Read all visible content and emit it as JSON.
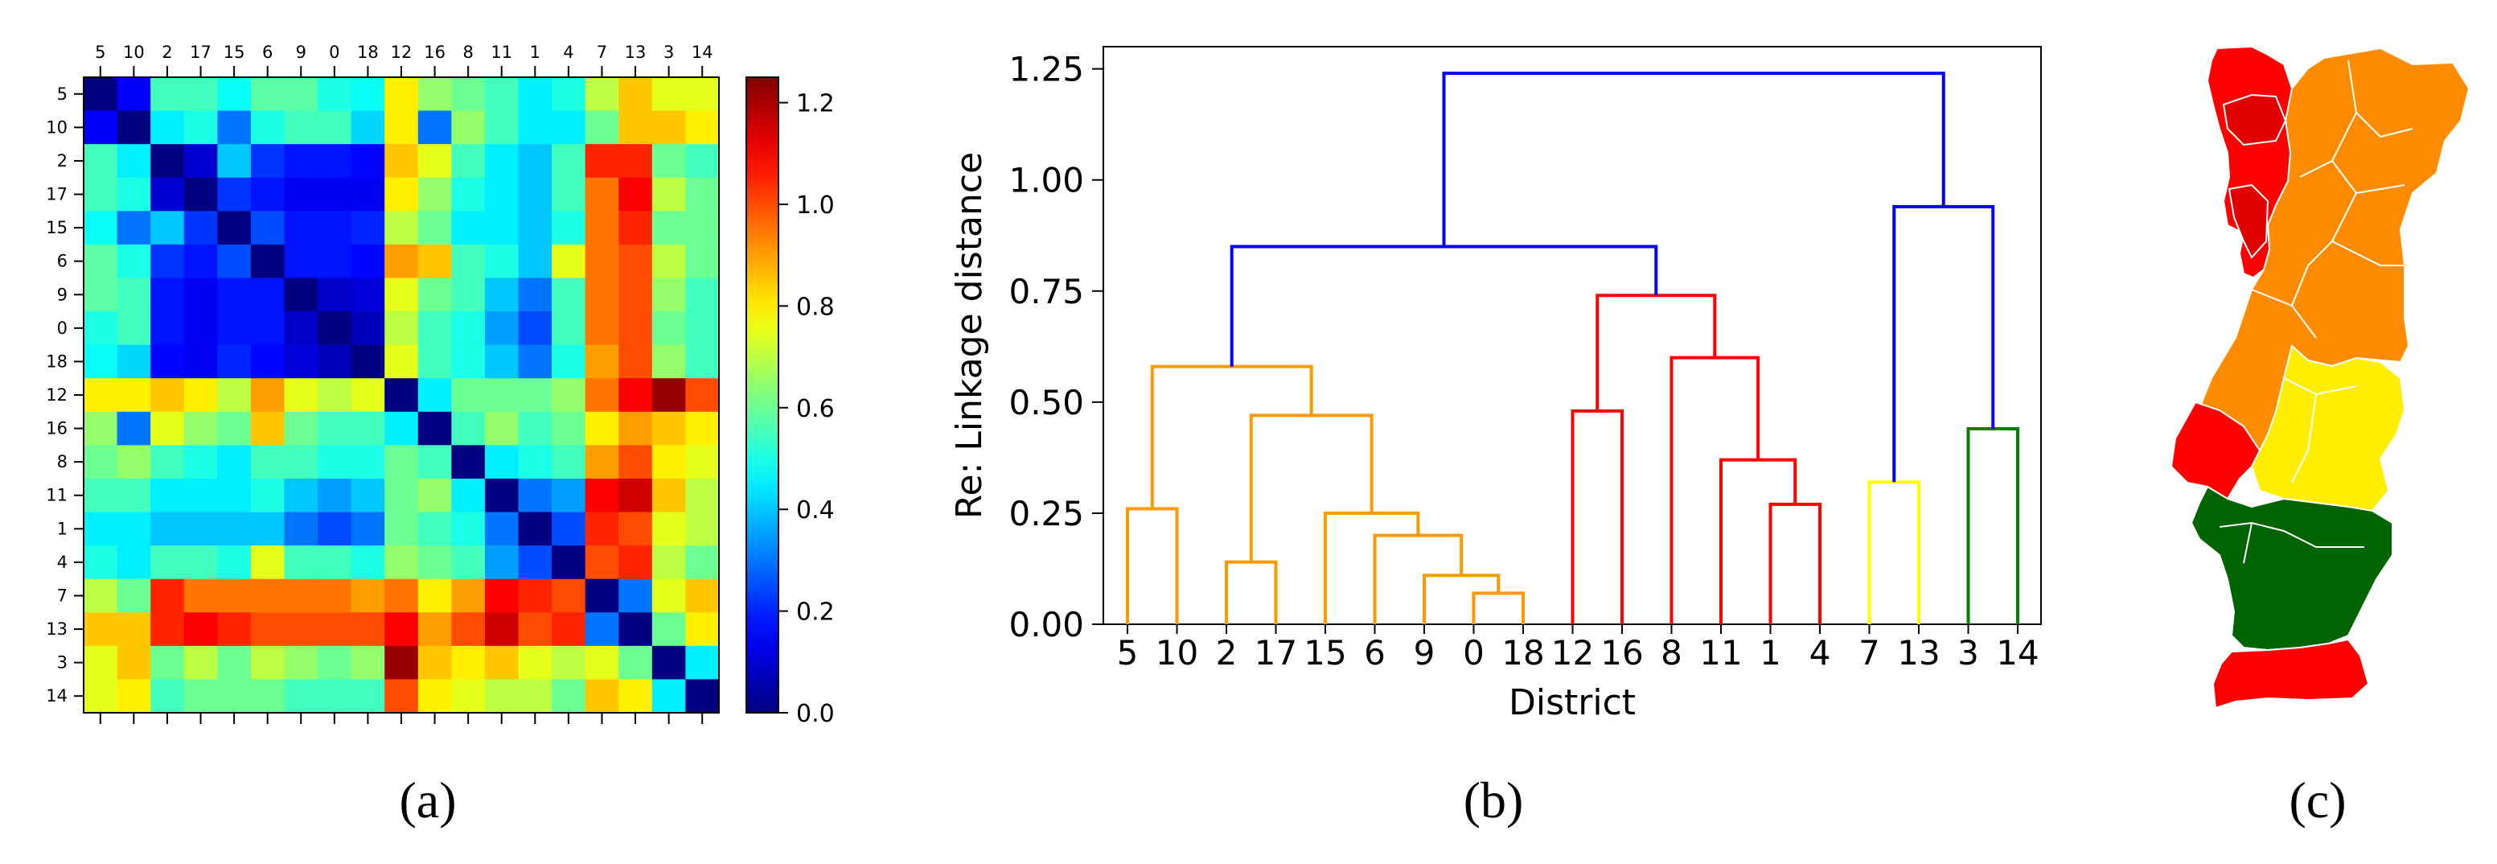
{
  "chart_data": [
    {
      "type": "heatmap",
      "panel": "(a)",
      "row_labels": [
        "5",
        "10",
        "2",
        "17",
        "15",
        "6",
        "9",
        "0",
        "18",
        "12",
        "16",
        "8",
        "11",
        "1",
        "4",
        "7",
        "13",
        "3",
        "14"
      ],
      "col_labels": [
        "5",
        "10",
        "2",
        "17",
        "15",
        "6",
        "9",
        "0",
        "18",
        "12",
        "16",
        "8",
        "11",
        "1",
        "4",
        "7",
        "13",
        "3",
        "14"
      ],
      "values": [
        [
          0.0,
          0.15,
          0.55,
          0.55,
          0.48,
          0.58,
          0.58,
          0.5,
          0.48,
          0.8,
          0.65,
          0.6,
          0.55,
          0.45,
          0.5,
          0.7,
          0.85,
          0.75,
          0.75
        ],
        [
          0.15,
          0.0,
          0.45,
          0.5,
          0.3,
          0.5,
          0.55,
          0.55,
          0.42,
          0.8,
          0.3,
          0.65,
          0.55,
          0.45,
          0.45,
          0.6,
          0.85,
          0.85,
          0.8
        ],
        [
          0.55,
          0.45,
          0.0,
          0.1,
          0.4,
          0.22,
          0.18,
          0.18,
          0.16,
          0.85,
          0.75,
          0.55,
          0.45,
          0.4,
          0.55,
          1.05,
          1.05,
          0.6,
          0.55
        ],
        [
          0.55,
          0.5,
          0.1,
          0.0,
          0.22,
          0.18,
          0.14,
          0.14,
          0.14,
          0.8,
          0.65,
          0.5,
          0.45,
          0.4,
          0.55,
          0.95,
          1.1,
          0.7,
          0.6
        ],
        [
          0.48,
          0.3,
          0.4,
          0.22,
          0.0,
          0.25,
          0.18,
          0.18,
          0.2,
          0.7,
          0.6,
          0.45,
          0.45,
          0.4,
          0.5,
          0.95,
          1.05,
          0.6,
          0.6
        ],
        [
          0.58,
          0.5,
          0.22,
          0.18,
          0.25,
          0.0,
          0.18,
          0.18,
          0.16,
          0.9,
          0.85,
          0.55,
          0.5,
          0.4,
          0.75,
          0.95,
          1.0,
          0.7,
          0.6
        ],
        [
          0.58,
          0.55,
          0.18,
          0.14,
          0.18,
          0.18,
          0.0,
          0.09,
          0.11,
          0.75,
          0.6,
          0.55,
          0.4,
          0.3,
          0.55,
          0.95,
          1.0,
          0.65,
          0.55
        ],
        [
          0.5,
          0.55,
          0.18,
          0.14,
          0.18,
          0.18,
          0.09,
          0.0,
          0.07,
          0.7,
          0.55,
          0.5,
          0.35,
          0.25,
          0.55,
          0.95,
          1.0,
          0.6,
          0.55
        ],
        [
          0.48,
          0.42,
          0.16,
          0.14,
          0.2,
          0.16,
          0.11,
          0.07,
          0.0,
          0.75,
          0.55,
          0.5,
          0.4,
          0.3,
          0.5,
          0.9,
          1.0,
          0.65,
          0.55
        ],
        [
          0.8,
          0.8,
          0.85,
          0.8,
          0.7,
          0.9,
          0.75,
          0.7,
          0.75,
          0.0,
          0.45,
          0.6,
          0.6,
          0.6,
          0.65,
          0.95,
          1.1,
          1.22,
          1.0
        ],
        [
          0.65,
          0.3,
          0.75,
          0.65,
          0.6,
          0.85,
          0.6,
          0.55,
          0.55,
          0.45,
          0.0,
          0.55,
          0.65,
          0.55,
          0.6,
          0.8,
          0.9,
          0.85,
          0.8
        ],
        [
          0.6,
          0.65,
          0.55,
          0.5,
          0.45,
          0.55,
          0.55,
          0.5,
          0.5,
          0.6,
          0.55,
          0.0,
          0.45,
          0.5,
          0.55,
          0.9,
          1.0,
          0.8,
          0.75
        ],
        [
          0.55,
          0.55,
          0.45,
          0.45,
          0.45,
          0.5,
          0.4,
          0.35,
          0.4,
          0.6,
          0.65,
          0.45,
          0.0,
          0.3,
          0.35,
          1.1,
          1.15,
          0.85,
          0.7
        ],
        [
          0.45,
          0.45,
          0.4,
          0.4,
          0.4,
          0.4,
          0.3,
          0.25,
          0.3,
          0.6,
          0.55,
          0.5,
          0.3,
          0.0,
          0.25,
          1.05,
          1.0,
          0.75,
          0.7
        ],
        [
          0.5,
          0.45,
          0.55,
          0.55,
          0.5,
          0.75,
          0.55,
          0.55,
          0.5,
          0.65,
          0.6,
          0.55,
          0.35,
          0.25,
          0.0,
          1.0,
          1.05,
          0.7,
          0.6
        ],
        [
          0.7,
          0.6,
          1.05,
          0.95,
          0.95,
          0.95,
          0.95,
          0.95,
          0.9,
          0.95,
          0.8,
          0.9,
          1.1,
          1.05,
          1.0,
          0.0,
          0.3,
          0.75,
          0.85
        ],
        [
          0.85,
          0.85,
          1.05,
          1.1,
          1.05,
          1.0,
          1.0,
          1.0,
          1.0,
          1.1,
          0.9,
          1.0,
          1.15,
          1.0,
          1.05,
          0.3,
          0.0,
          0.6,
          0.8
        ],
        [
          0.75,
          0.85,
          0.6,
          0.7,
          0.6,
          0.7,
          0.65,
          0.6,
          0.65,
          1.22,
          0.85,
          0.8,
          0.85,
          0.75,
          0.7,
          0.75,
          0.6,
          0.0,
          0.45
        ],
        [
          0.75,
          0.8,
          0.55,
          0.6,
          0.6,
          0.6,
          0.55,
          0.55,
          0.55,
          1.0,
          0.8,
          0.75,
          0.7,
          0.7,
          0.6,
          0.85,
          0.8,
          0.45,
          0.0
        ]
      ],
      "colormap": "jet",
      "vmin": 0.0,
      "vmax": 1.25,
      "colorbar_ticks": [
        "0.0",
        "0.2",
        "0.4",
        "0.6",
        "0.8",
        "1.0",
        "1.2"
      ]
    },
    {
      "type": "dendrogram",
      "panel": "(b)",
      "ylabel": "Re: Linkage distance",
      "xlabel": "District",
      "ylim": [
        0,
        1.3
      ],
      "yticks": [
        "0.00",
        "0.25",
        "0.50",
        "0.75",
        "1.00",
        "1.25"
      ],
      "leaves": [
        "5",
        "10",
        "2",
        "17",
        "15",
        "6",
        "9",
        "0",
        "18",
        "12",
        "16",
        "8",
        "11",
        "1",
        "4",
        "7",
        "13",
        "3",
        "14"
      ],
      "merges": [
        {
          "left": "5",
          "right": "10",
          "height": 0.26,
          "color": "#ff9900"
        },
        {
          "left": "2",
          "right": "17",
          "height": 0.14,
          "color": "#ff9900"
        },
        {
          "left": "0",
          "right": "18",
          "height": 0.07,
          "color": "#ff9900"
        },
        {
          "left": "9",
          "right": "0,18",
          "height": 0.11,
          "color": "#ff9900"
        },
        {
          "left": "6",
          "right": "9,0,18",
          "height": 0.2,
          "color": "#ff9900"
        },
        {
          "left": "15",
          "right": "6,9,0,18",
          "height": 0.25,
          "color": "#ff9900"
        },
        {
          "left": "2,17",
          "right": "15,6,9,0,18",
          "height": 0.47,
          "color": "#ff9900"
        },
        {
          "left": "5,10",
          "right": "2,17,15,6,9,0,18",
          "height": 0.58,
          "color": "#ff9900"
        },
        {
          "left": "12",
          "right": "16",
          "height": 0.48,
          "color": "#ff0000"
        },
        {
          "left": "1",
          "right": "4",
          "height": 0.27,
          "color": "#ff0000"
        },
        {
          "left": "11",
          "right": "1,4",
          "height": 0.37,
          "color": "#ff0000"
        },
        {
          "left": "8",
          "right": "11,1,4",
          "height": 0.6,
          "color": "#ff0000"
        },
        {
          "left": "12,16",
          "right": "8,11,1,4",
          "height": 0.74,
          "color": "#ff0000"
        },
        {
          "left": "orange-cluster",
          "right": "red-cluster",
          "height": 0.85,
          "color": "#0000ff"
        },
        {
          "left": "7",
          "right": "13",
          "height": 0.32,
          "color": "#ffff00"
        },
        {
          "left": "3",
          "right": "14",
          "height": 0.44,
          "color": "#008000"
        },
        {
          "left": "7,13",
          "right": "3,14",
          "height": 0.94,
          "color": "#0000ff"
        },
        {
          "left": "orange+red",
          "right": "yellow+green",
          "height": 1.24,
          "color": "#0000ff"
        }
      ]
    },
    {
      "type": "map",
      "panel": "(c)",
      "description_colors": {
        "red": "#ff0000",
        "orange": "#ff8c00",
        "yellow": "#ffee00",
        "green": "#006400"
      }
    }
  ],
  "captions": {
    "a": "(a)",
    "b": "(b)",
    "c": "(c)"
  }
}
